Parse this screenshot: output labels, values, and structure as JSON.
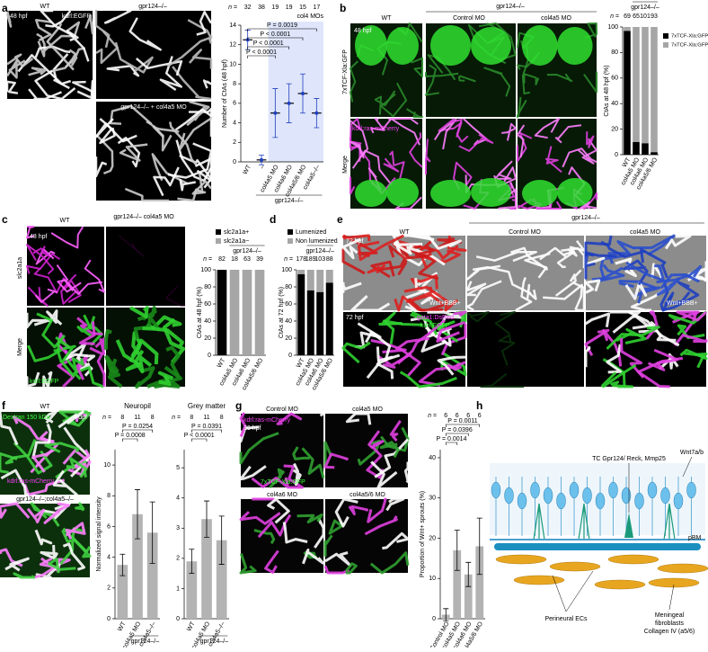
{
  "figure": {
    "panels": [
      "a",
      "b",
      "c",
      "d",
      "e",
      "f",
      "g",
      "h"
    ],
    "a": {
      "hpf": "48 hpf",
      "wt": "WT",
      "reporter": "kdrl:EGFP",
      "mutant": "gpr124–/–",
      "mutant_mo": "gpr124–/– + col4a5 MO"
    },
    "b": {
      "hpf": "48 hpf",
      "wt": "WT",
      "group": "gpr124–/–",
      "control": "Control MO",
      "mo": "col4a5 MO",
      "row1": "7xTCF-Xla:GFP",
      "reporter2": "kdrl:ras-mCherry",
      "row2": "Merge"
    },
    "c": {
      "hpf": "48 hpf",
      "wt": "WT",
      "mutant_mo": "gpr124–/– col4a5 MO",
      "row1": "slc2a1a",
      "row2": "Merge",
      "reporter": "kdrl:EGFP"
    },
    "e": {
      "hpf1": "72 hpf",
      "wt": "WT",
      "group": "gpr124–/–",
      "control": "Control MO",
      "mo": "col4a5 MO",
      "annot1": "Wnt+BBB+",
      "annot2": "Wnt+BBB+",
      "hpf2": "72 hpf",
      "reporter1": "gata1:DsRed",
      "reporter2": "kdrl:EGFP"
    },
    "f": {
      "wt": "WT",
      "dextran": "Dextran 150 kDa",
      "dpf": "4 dpf",
      "reporter": "kdrl:ras-mCherry",
      "mutant": "gpr124–/–;col4a5–/–"
    },
    "g": {
      "control": "Control MO",
      "mo5": "col4a5 MO",
      "mo6": "col4a6 MO",
      "mo56": "col4a5/6 MO",
      "reporter1": "kdrl:ras-mCherry",
      "hpf": "36 hpf",
      "reporter2": "7xTCF-Xla:GFP"
    },
    "h": {
      "tc": "TC Gpr124/ Reck, Mmp25",
      "wnt": "Wnt7a/b",
      "pbm": "pBM",
      "ecs": "Perineural ECs",
      "fib1": "Meningeal",
      "fib2": "fibroblasts",
      "fib3": "Collagen IV (a5/6)"
    }
  },
  "chart_data": [
    {
      "type": "dot",
      "ylabel": "Number of CtAs (48 hpf)",
      "categories": [
        "WT",
        "–",
        "col4a5 MO",
        "col4a6 MO",
        "col4a5/6 MO",
        "col4a5–/–"
      ],
      "group_label": "gpr124–/–",
      "highlight_label": "col4 MOs",
      "n_label": "n =",
      "n": [
        32,
        38,
        19,
        19,
        15,
        17
      ],
      "values": [
        12.5,
        0.2,
        5,
        6,
        7,
        5
      ],
      "errors": [
        1,
        0.5,
        2.5,
        2,
        2,
        1.5
      ],
      "color": "#1f3fbf",
      "ylim": [
        0,
        14
      ],
      "yticks": [
        0,
        2,
        4,
        6,
        8,
        10,
        12,
        14
      ],
      "annotations": [
        "P = 0.0019",
        "P < 0.0001",
        "P < 0.0001",
        "P < 0.0001"
      ]
    },
    {
      "type": "stacked_bar",
      "ylabel": "CtAs at 48 hpf (%)",
      "categories": [
        "WT",
        "col4a5 MO",
        "col4a6 MO",
        "col4a5/6 MO"
      ],
      "group_label": "gpr124–/–",
      "n_label": "n =",
      "n": [
        69,
        65,
        101,
        93
      ],
      "series": [
        {
          "name": "7xTCF-Xla:GFP+",
          "color": "#000000",
          "values": [
            97,
            10,
            9,
            2
          ]
        },
        {
          "name": "7xTCF-Xla:GFP−",
          "color": "#a6a6a6",
          "values": [
            3,
            90,
            91,
            98
          ]
        }
      ],
      "ylim": [
        0,
        100
      ],
      "yticks": [
        0,
        20,
        40,
        60,
        80,
        100
      ]
    },
    {
      "type": "stacked_bar",
      "ylabel": "CtAs at 48 hpf (%)",
      "categories": [
        "WT",
        "col4a5 MO",
        "col4a6 MO",
        "col4a5/6 MO"
      ],
      "group_label": "gpr124–/–",
      "n_label": "n =",
      "n": [
        82,
        18,
        63,
        39
      ],
      "series": [
        {
          "name": "slc2a1a+",
          "color": "#000000",
          "values": [
            100,
            0,
            0,
            0
          ]
        },
        {
          "name": "slc2a1a−",
          "color": "#a6a6a6",
          "values": [
            0,
            100,
            100,
            100
          ]
        }
      ],
      "ylim": [
        0,
        100
      ],
      "yticks": [
        0,
        20,
        40,
        60,
        80,
        100
      ]
    },
    {
      "type": "stacked_bar",
      "ylabel": "CtAs at 72 hpf (%)",
      "categories": [
        "WT",
        "col4a5 MO",
        "col4a6 MO",
        "col4a5/6 MO"
      ],
      "group_label": "gpr124–/–",
      "n_label": "n =",
      "n": [
        178,
        189,
        103,
        88
      ],
      "series": [
        {
          "name": "Lumenized",
          "color": "#000000",
          "values": [
            95,
            76,
            74,
            85
          ]
        },
        {
          "name": "Non lumenized",
          "color": "#a6a6a6",
          "values": [
            5,
            24,
            26,
            15
          ]
        }
      ],
      "ylim": [
        0,
        100
      ],
      "yticks": [
        0,
        20,
        40,
        60,
        80,
        100
      ]
    },
    {
      "type": "bar",
      "title": "Neuropil",
      "ylabel": "Normalized signal intensity",
      "categories": [
        "WT",
        "col4a5 MO",
        "col4a5–/–"
      ],
      "group_label": "gpr124–/–",
      "n_label": "n =",
      "n": [
        8,
        11,
        8
      ],
      "values": [
        3.5,
        6.8,
        5.6
      ],
      "errors": [
        0.7,
        1.6,
        2
      ],
      "color": "#b3b3b3",
      "ylim": [
        0,
        11
      ],
      "yticks": [
        0,
        2,
        4,
        6,
        8,
        10
      ],
      "annotations": [
        "P = 0.0254",
        "P = 0.0008"
      ]
    },
    {
      "type": "bar",
      "title": "Grey matter",
      "categories": [
        "WT",
        "col4a5 MO",
        "col4a5–/–"
      ],
      "group_label": "gpr124–/–",
      "n_label": "n =",
      "n": [
        8,
        11,
        8
      ],
      "values": [
        1.9,
        3.3,
        2.6
      ],
      "errors": [
        0.4,
        0.6,
        0.8
      ],
      "color": "#b3b3b3",
      "ylim": [
        0,
        5.6
      ],
      "yticks": [
        0,
        1,
        2,
        3,
        4,
        5
      ],
      "annotations": [
        "P = 0.0391",
        "P < 0.0001"
      ]
    },
    {
      "type": "bar",
      "ylabel": "Proportion of Wnt+ sprouts (%)",
      "categories": [
        "Control MO",
        "col4a5 MO",
        "col4a6 MO",
        "col4a5/6 MO"
      ],
      "n_label": "n =",
      "n": [
        6,
        6,
        6,
        6
      ],
      "values": [
        1,
        17,
        11,
        18
      ],
      "errors": [
        1.5,
        5,
        3,
        7
      ],
      "color": "#b3b3b3",
      "ylim": [
        0,
        42
      ],
      "yticks": [
        0,
        10,
        20,
        30,
        40
      ],
      "annotations": [
        "P = 0.0011",
        "P = 0.0396",
        "P = 0.0014"
      ]
    }
  ]
}
